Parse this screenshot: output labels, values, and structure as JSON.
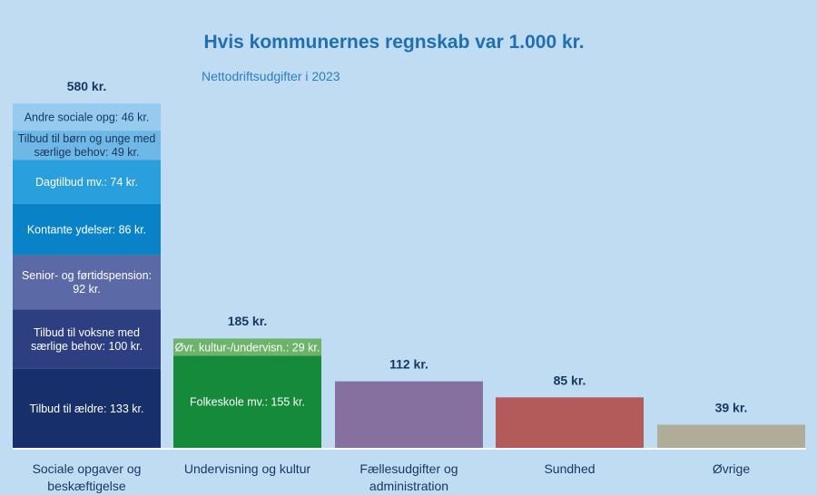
{
  "chart_data": {
    "type": "bar",
    "stacked": true,
    "title": "Hvis kommunernes regnskab var 1.000 kr.",
    "subtitle": "Nettodriftsudgifter i 2023",
    "unit": "kr.",
    "categories": [
      {
        "name": [
          "Sociale opgaver og",
          "beskæftigelse"
        ],
        "total": 580,
        "total_label": "580 kr.",
        "segments": [
          {
            "label": [
              "Tilbud til ældre: 133 kr."
            ],
            "value": 133,
            "color": "#17306b"
          },
          {
            "label": [
              "Tilbud til voksne med",
              "særlige behov: 100 kr."
            ],
            "value": 100,
            "color": "#2d3f80"
          },
          {
            "label": [
              "Senior- og førtidspension:",
              "92 kr."
            ],
            "value": 92,
            "color": "#5b6aa6"
          },
          {
            "label": [
              "Kontante ydelser: 86 kr."
            ],
            "value": 86,
            "color": "#0a82c8"
          },
          {
            "label": [
              "Dagtilbud mv.: 74 kr."
            ],
            "value": 74,
            "color": "#29a0dd"
          },
          {
            "label": [
              "Tilbud til børn og unge med",
              "særlige behov: 49 kr."
            ],
            "value": 49,
            "color": "#6fb7e6",
            "dark_text": true
          },
          {
            "label": [
              "Andre sociale opg: 46 kr."
            ],
            "value": 46,
            "color": "#96caee",
            "dark_text": true
          }
        ]
      },
      {
        "name": [
          "Undervisning og kultur"
        ],
        "total": 185,
        "total_label": "185 kr.",
        "segments": [
          {
            "label": [
              "Folkeskole mv.: 155 kr."
            ],
            "value": 155,
            "color": "#168a3b"
          },
          {
            "label": [
              "Øvr. kultur-/undervisn.: 29 kr."
            ],
            "value": 29,
            "color": "#6db36a"
          }
        ]
      },
      {
        "name": [
          "Fællesudgifter og",
          "administration"
        ],
        "total": 112,
        "total_label": "112 kr.",
        "segments": [
          {
            "label": [],
            "value": 112,
            "color": "#85709f"
          }
        ]
      },
      {
        "name": [
          "Sundhed"
        ],
        "total": 85,
        "total_label": "85 kr.",
        "segments": [
          {
            "label": [],
            "value": 85,
            "color": "#b35a5a"
          }
        ]
      },
      {
        "name": [
          "Øvrige"
        ],
        "total": 39,
        "total_label": "39 kr.",
        "segments": [
          {
            "label": [],
            "value": 39,
            "color": "#afac98"
          }
        ]
      }
    ],
    "ylim": [
      0,
      580
    ],
    "grid": false,
    "legend": "none"
  }
}
